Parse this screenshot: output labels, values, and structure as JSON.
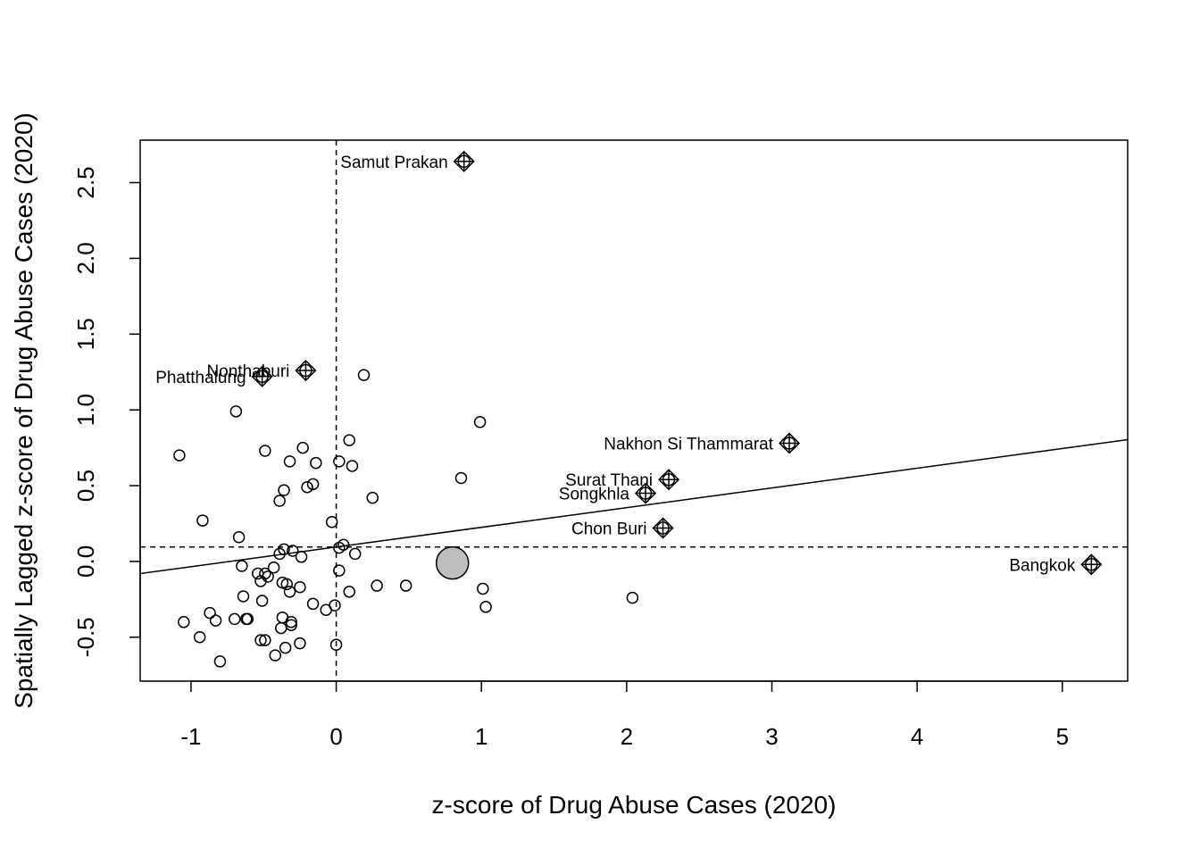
{
  "chart_data": {
    "type": "scatter",
    "title": "",
    "xlabel": "z-score of Drug Abuse Cases (2020)",
    "ylabel": "Spatially Lagged z-score of Drug Abuse Cases (2020)",
    "xlim": [
      -1.35,
      5.45
    ],
    "ylim": [
      -0.79,
      2.78
    ],
    "xticks": [
      -1,
      0,
      1,
      2,
      3,
      4,
      5
    ],
    "yticks": [
      -0.5,
      0.0,
      0.5,
      1.0,
      1.5,
      2.0,
      2.5
    ],
    "ytick_labels": [
      "-0.5",
      "0.0",
      "0.5",
      "1.0",
      "1.5",
      "2.0",
      "2.5"
    ],
    "grid": false,
    "reference_lines": {
      "x_mean": 0.0,
      "y_mean": 0.095
    },
    "regression_line": {
      "intercept": 0.095,
      "slope": 0.13
    },
    "centroid": {
      "x": 0.8,
      "y": -0.01
    },
    "influential_points": [
      {
        "label": "Samut Prakan",
        "x": 0.88,
        "y": 2.64,
        "label_side": "left"
      },
      {
        "label": "Nonthaburi",
        "x": -0.21,
        "y": 1.26,
        "label_side": "left"
      },
      {
        "label": "Phatthalung",
        "x": -0.51,
        "y": 1.22,
        "label_side": "left"
      },
      {
        "label": "Nakhon Si Thammarat",
        "x": 3.12,
        "y": 0.78,
        "label_side": "left"
      },
      {
        "label": "Surat Thani",
        "x": 2.29,
        "y": 0.54,
        "label_side": "left"
      },
      {
        "label": "Songkhla",
        "x": 2.13,
        "y": 0.45,
        "label_side": "left"
      },
      {
        "label": "Chon Buri",
        "x": 2.25,
        "y": 0.22,
        "label_side": "left"
      },
      {
        "label": "Bangkok",
        "x": 5.2,
        "y": -0.02,
        "label_side": "left"
      }
    ],
    "points": [
      {
        "x": 0.19,
        "y": 1.23
      },
      {
        "x": -0.69,
        "y": 0.99
      },
      {
        "x": 0.99,
        "y": 0.92
      },
      {
        "x": -1.08,
        "y": 0.7
      },
      {
        "x": 0.09,
        "y": 0.8
      },
      {
        "x": -0.23,
        "y": 0.75
      },
      {
        "x": -0.49,
        "y": 0.73
      },
      {
        "x": -0.32,
        "y": 0.66
      },
      {
        "x": -0.14,
        "y": 0.65
      },
      {
        "x": 0.02,
        "y": 0.66
      },
      {
        "x": 0.11,
        "y": 0.63
      },
      {
        "x": 0.86,
        "y": 0.55
      },
      {
        "x": -0.16,
        "y": 0.51
      },
      {
        "x": -0.2,
        "y": 0.49
      },
      {
        "x": -0.36,
        "y": 0.47
      },
      {
        "x": 0.25,
        "y": 0.42
      },
      {
        "x": -0.39,
        "y": 0.4
      },
      {
        "x": -0.92,
        "y": 0.27
      },
      {
        "x": -0.03,
        "y": 0.26
      },
      {
        "x": -0.67,
        "y": 0.16
      },
      {
        "x": 0.05,
        "y": 0.11
      },
      {
        "x": 0.02,
        "y": 0.09
      },
      {
        "x": -0.36,
        "y": 0.08
      },
      {
        "x": -0.3,
        "y": 0.07
      },
      {
        "x": -0.39,
        "y": 0.05
      },
      {
        "x": 0.13,
        "y": 0.05
      },
      {
        "x": -0.24,
        "y": 0.03
      },
      {
        "x": -0.65,
        "y": -0.03
      },
      {
        "x": -0.43,
        "y": -0.04
      },
      {
        "x": 0.02,
        "y": -0.06
      },
      {
        "x": -0.54,
        "y": -0.08
      },
      {
        "x": -0.49,
        "y": -0.08
      },
      {
        "x": -0.47,
        "y": -0.1
      },
      {
        "x": -0.52,
        "y": -0.13
      },
      {
        "x": -0.37,
        "y": -0.14
      },
      {
        "x": -0.34,
        "y": -0.15
      },
      {
        "x": 0.28,
        "y": -0.16
      },
      {
        "x": 0.48,
        "y": -0.16
      },
      {
        "x": -0.25,
        "y": -0.17
      },
      {
        "x": 1.01,
        "y": -0.18
      },
      {
        "x": -0.32,
        "y": -0.2
      },
      {
        "x": 0.09,
        "y": -0.2
      },
      {
        "x": -0.64,
        "y": -0.23
      },
      {
        "x": 2.04,
        "y": -0.24
      },
      {
        "x": -0.51,
        "y": -0.26
      },
      {
        "x": -0.16,
        "y": -0.28
      },
      {
        "x": -0.01,
        "y": -0.29
      },
      {
        "x": -0.07,
        "y": -0.32
      },
      {
        "x": 1.03,
        "y": -0.3
      },
      {
        "x": -0.87,
        "y": -0.34
      },
      {
        "x": -0.37,
        "y": -0.37
      },
      {
        "x": -0.62,
        "y": -0.38
      },
      {
        "x": -0.7,
        "y": -0.38
      },
      {
        "x": -0.83,
        "y": -0.39
      },
      {
        "x": -1.05,
        "y": -0.4
      },
      {
        "x": -0.31,
        "y": -0.4
      },
      {
        "x": -0.31,
        "y": -0.42
      },
      {
        "x": -0.38,
        "y": -0.44
      },
      {
        "x": -0.94,
        "y": -0.5
      },
      {
        "x": -0.49,
        "y": -0.52
      },
      {
        "x": -0.52,
        "y": -0.52
      },
      {
        "x": -0.25,
        "y": -0.54
      },
      {
        "x": 0.0,
        "y": -0.55
      },
      {
        "x": -0.35,
        "y": -0.57
      },
      {
        "x": -0.42,
        "y": -0.62
      },
      {
        "x": -0.8,
        "y": -0.66
      },
      {
        "x": -0.61,
        "y": -0.38
      }
    ]
  }
}
